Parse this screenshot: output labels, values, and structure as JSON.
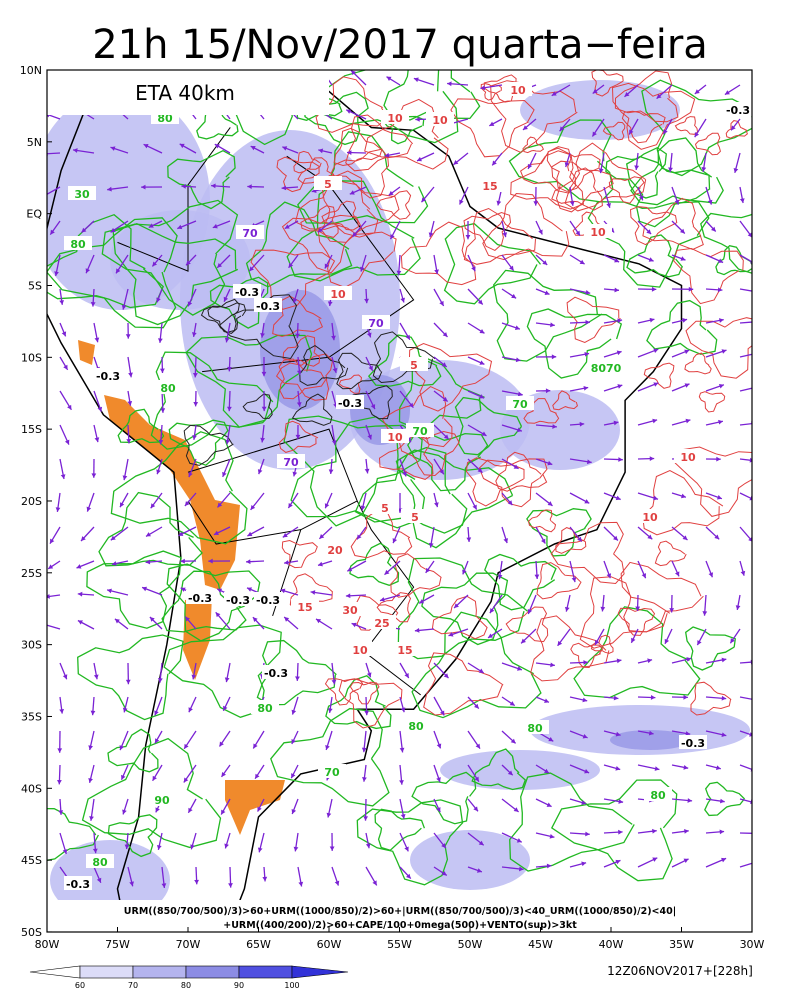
{
  "header": {
    "title": "21h 15/Nov/2017 quarta−feira",
    "model": "ETA 40km"
  },
  "map": {
    "lat_labels": [
      "10N",
      "5N",
      "EQ",
      "5S",
      "10S",
      "15S",
      "20S",
      "25S",
      "30S",
      "35S",
      "40S",
      "45S",
      "50S"
    ],
    "lon_labels": [
      "80W",
      "75W",
      "70W",
      "65W",
      "60W",
      "55W",
      "50W",
      "45W",
      "40W",
      "35W",
      "30W"
    ],
    "contour_labels": [
      "-0.3",
      "-0.3",
      "-0.3",
      "-0.3",
      "-0.3",
      "-0.3",
      "-0.3",
      "-0.3",
      "-0.3",
      "-0.3",
      "-0.3",
      "-0.3",
      "80",
      "30",
      "80",
      "70",
      "70",
      "70",
      "70",
      "80",
      "8070",
      "70",
      "80",
      "80",
      "80",
      "90",
      "80",
      "70",
      "80",
      "10",
      "10",
      "5",
      "15",
      "10",
      "10",
      "5",
      "10",
      "10",
      "20",
      "15",
      "30",
      "25",
      "10",
      "15",
      "5",
      "5",
      "10",
      "10"
    ],
    "formula": [
      "URM((850/700/500)/3)>60+URM((1000/850)/2)>60+|URM((850/700/500)/3)<40_URM((1000/850)/2)<40|",
      "+URM((400/200)/2)>60+CAPE/100+0mega(500)+VENTO(sup)>3kt"
    ]
  },
  "colorbar": {
    "labels": [
      "60",
      "70",
      "80",
      "90",
      "100"
    ]
  },
  "footer": {
    "run": "12Z06NOV2017+[228h]"
  }
}
